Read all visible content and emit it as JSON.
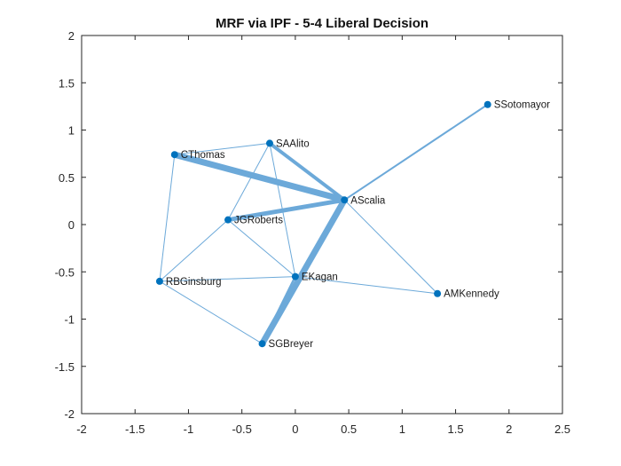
{
  "chart_data": {
    "type": "scatter",
    "title": "MRF via IPF - 5-4 Liberal Decision",
    "xlim": [
      -2,
      2.5
    ],
    "ylim": [
      -2,
      2
    ],
    "xticks": [
      -2,
      -1.5,
      -1,
      -0.5,
      0,
      0.5,
      1,
      1.5,
      2,
      2.5
    ],
    "yticks": [
      -2,
      -1.5,
      -1,
      -0.5,
      0,
      0.5,
      1,
      1.5,
      2
    ],
    "grid": false,
    "node_color": "#0072BD",
    "edge_color": "#6CA9D9",
    "nodes": [
      {
        "id": "SSotomayor",
        "x": 1.8,
        "y": 1.27
      },
      {
        "id": "SAAlito",
        "x": -0.24,
        "y": 0.86
      },
      {
        "id": "CThomas",
        "x": -1.13,
        "y": 0.74
      },
      {
        "id": "AScalia",
        "x": 0.46,
        "y": 0.26
      },
      {
        "id": "JGRoberts",
        "x": -0.63,
        "y": 0.05
      },
      {
        "id": "EKagan",
        "x": 0.0,
        "y": -0.55
      },
      {
        "id": "RBGinsburg",
        "x": -1.27,
        "y": -0.6
      },
      {
        "id": "AMKennedy",
        "x": 1.33,
        "y": -0.73
      },
      {
        "id": "SGBreyer",
        "x": -0.31,
        "y": -1.26
      }
    ],
    "edges": [
      {
        "source": "CThomas",
        "target": "AScalia",
        "weight": 7
      },
      {
        "source": "SGBreyer",
        "target": "AScalia",
        "weight": 7
      },
      {
        "source": "JGRoberts",
        "target": "AScalia",
        "weight": 5
      },
      {
        "source": "SAAlito",
        "target": "AScalia",
        "weight": 4
      },
      {
        "source": "SGBreyer",
        "target": "EKagan",
        "weight": 2.5
      },
      {
        "source": "SSotomayor",
        "target": "AScalia",
        "weight": 2
      },
      {
        "source": "CThomas",
        "target": "SAAlito",
        "weight": 1
      },
      {
        "source": "CThomas",
        "target": "RBGinsburg",
        "weight": 1
      },
      {
        "source": "SAAlito",
        "target": "JGRoberts",
        "weight": 1
      },
      {
        "source": "SAAlito",
        "target": "EKagan",
        "weight": 1
      },
      {
        "source": "JGRoberts",
        "target": "EKagan",
        "weight": 1
      },
      {
        "source": "JGRoberts",
        "target": "RBGinsburg",
        "weight": 1
      },
      {
        "source": "RBGinsburg",
        "target": "EKagan",
        "weight": 1
      },
      {
        "source": "RBGinsburg",
        "target": "SGBreyer",
        "weight": 1
      },
      {
        "source": "EKagan",
        "target": "AMKennedy",
        "weight": 1
      },
      {
        "source": "AScalia",
        "target": "AMKennedy",
        "weight": 1
      }
    ]
  }
}
